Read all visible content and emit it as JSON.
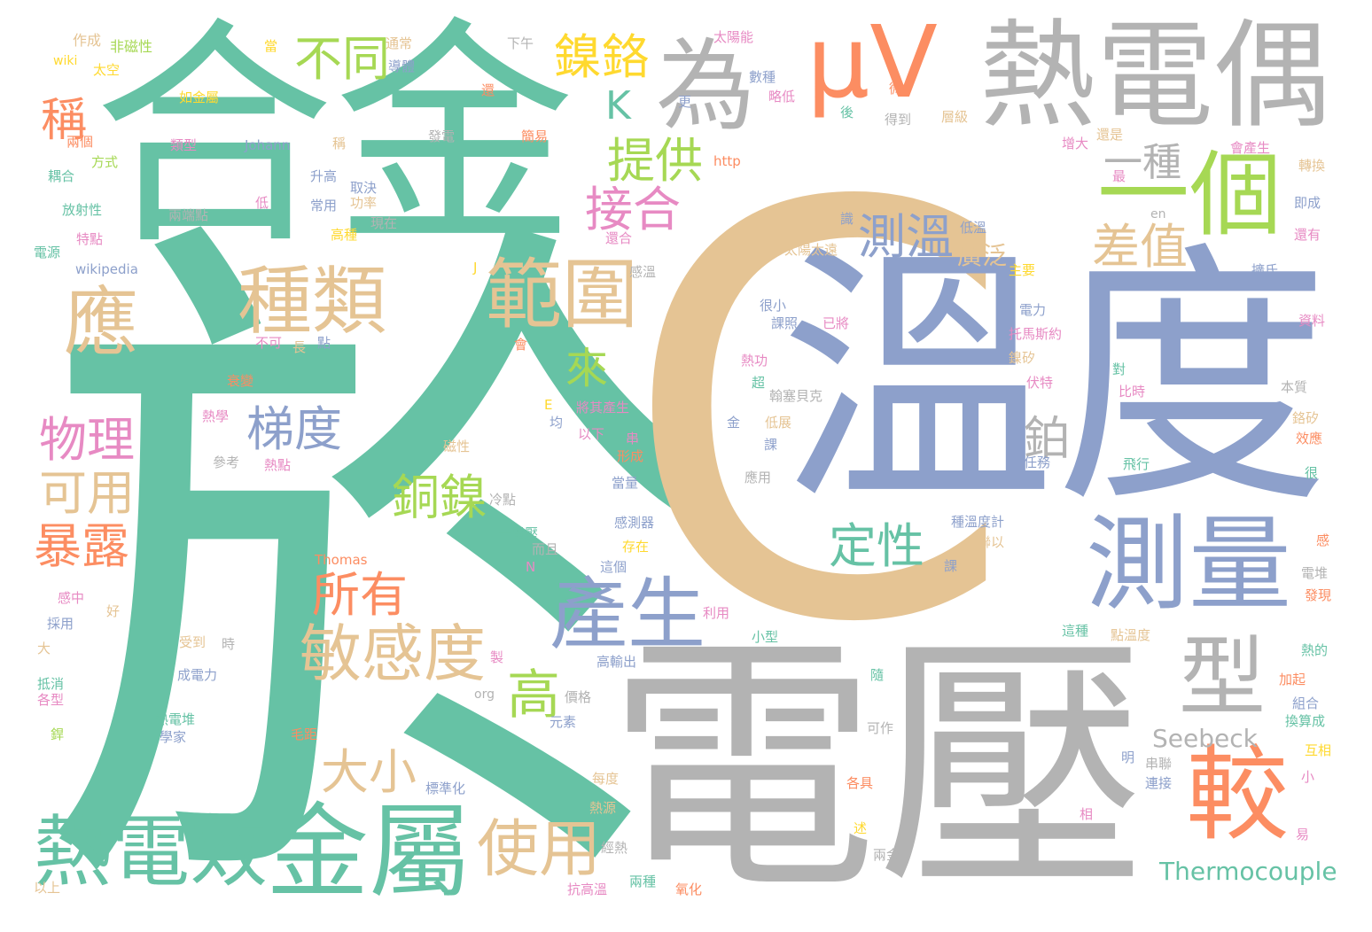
{
  "palette": {
    "green": "#66c2a5",
    "orange": "#fc8d62",
    "blue": "#8da0cb",
    "pink": "#e78ac3",
    "lime": "#a6d854",
    "yellow": "#ffd92f",
    "tan": "#e5c494",
    "gray": "#b3b3b3"
  },
  "words": [
    {
      "text": "於",
      "color": "#66c2a5"
    },
    {
      "text": "C",
      "color": "#e5c494"
    },
    {
      "text": "溫度",
      "color": "#8da0cb"
    },
    {
      "text": "電壓",
      "color": "#b3b3b3"
    },
    {
      "text": "合金",
      "color": "#66c2a5"
    },
    {
      "text": "熱電偶",
      "color": "#b3b3b3"
    },
    {
      "text": "μV",
      "color": "#fc8d62"
    },
    {
      "text": "為",
      "color": "#b3b3b3"
    },
    {
      "text": "一個",
      "color": "#a6d854"
    },
    {
      "text": "測量",
      "color": "#8da0cb"
    },
    {
      "text": "金屬",
      "color": "#66c2a5"
    },
    {
      "text": "熱電效",
      "color": "#66c2a5"
    },
    {
      "text": "較",
      "color": "#fc8d62"
    },
    {
      "text": "產生",
      "color": "#8da0cb"
    },
    {
      "text": "型",
      "color": "#b3b3b3"
    },
    {
      "text": "範圍",
      "color": "#e5c494"
    },
    {
      "text": "種類",
      "color": "#e5c494"
    },
    {
      "text": "應",
      "color": "#e5c494"
    },
    {
      "text": "敏感度",
      "color": "#e5c494"
    },
    {
      "text": "使用",
      "color": "#e5c494"
    },
    {
      "text": "測溫",
      "color": "#8da0cb"
    },
    {
      "text": "差值",
      "color": "#e5c494"
    },
    {
      "text": "鎳鉻",
      "color": "#ffd92f"
    },
    {
      "text": "提供",
      "color": "#a6d854"
    },
    {
      "text": "接合",
      "color": "#e78ac3"
    },
    {
      "text": "不同",
      "color": "#a6d854"
    },
    {
      "text": "梯度",
      "color": "#8da0cb"
    },
    {
      "text": "物理",
      "color": "#e78ac3"
    },
    {
      "text": "可用",
      "color": "#e5c494"
    },
    {
      "text": "暴露",
      "color": "#fc8d62"
    },
    {
      "text": "銅鎳",
      "color": "#a6d854"
    },
    {
      "text": "所有",
      "color": "#fc8d62"
    },
    {
      "text": "大小",
      "color": "#e5c494"
    },
    {
      "text": "定性",
      "color": "#66c2a5"
    },
    {
      "text": "一種",
      "color": "#b3b3b3"
    },
    {
      "text": "高",
      "color": "#a6d854"
    },
    {
      "text": "來",
      "color": "#a6d854"
    },
    {
      "text": "稱",
      "color": "#fc8d62"
    },
    {
      "text": "K",
      "color": "#66c2a5"
    },
    {
      "text": "鉑",
      "color": "#b3b3b3"
    },
    {
      "text": "Seebeck",
      "color": "#b3b3b3"
    },
    {
      "text": "Thermocouple",
      "color": "#66c2a5"
    },
    {
      "text": "廣泛",
      "color": "#e5c494"
    },
    {
      "text": "作成",
      "color": "#e5c494"
    },
    {
      "text": "非磁性",
      "color": "#a6d854"
    },
    {
      "text": "wiki",
      "color": "#ffd92f"
    },
    {
      "text": "太空",
      "color": "#ffd92f"
    },
    {
      "text": "當",
      "color": "#ffd92f"
    },
    {
      "text": "通常",
      "color": "#e5c494"
    },
    {
      "text": "導體",
      "color": "#8da0cb"
    },
    {
      "text": "下午",
      "color": "#b3b3b3"
    },
    {
      "text": "太陽能",
      "color": "#e78ac3"
    },
    {
      "text": "如金屬",
      "color": "#ffd92f"
    },
    {
      "text": "類型",
      "color": "#e78ac3"
    },
    {
      "text": "Johann",
      "color": "#8da0cb"
    },
    {
      "text": "稱",
      "color": "#e5c494"
    },
    {
      "text": "發電",
      "color": "#b3b3b3"
    },
    {
      "text": "簡易",
      "color": "#fc8d62"
    },
    {
      "text": "還",
      "color": "#fc8d62"
    },
    {
      "text": "兩個",
      "color": "#fc8d62"
    },
    {
      "text": "方式",
      "color": "#a6d854"
    },
    {
      "text": "耦合",
      "color": "#66c2a5"
    },
    {
      "text": "兩端點",
      "color": "#b3b3b3"
    },
    {
      "text": "低",
      "color": "#e78ac3"
    },
    {
      "text": "升高",
      "color": "#8da0cb"
    },
    {
      "text": "取決",
      "color": "#8da0cb"
    },
    {
      "text": "常用",
      "color": "#8da0cb"
    },
    {
      "text": "功率",
      "color": "#e5c494"
    },
    {
      "text": "放射性",
      "color": "#66c2a5"
    },
    {
      "text": "特點",
      "color": "#e78ac3"
    },
    {
      "text": "現在",
      "color": "#b3b3b3"
    },
    {
      "text": "高種",
      "color": "#ffd92f"
    },
    {
      "text": "電源",
      "color": "#66c2a5"
    },
    {
      "text": "wikipedia",
      "color": "#8da0cb"
    },
    {
      "text": "J",
      "color": "#ffd92f"
    },
    {
      "text": "http",
      "color": "#fc8d62"
    },
    {
      "text": "更",
      "color": "#8da0cb"
    },
    {
      "text": "數種",
      "color": "#8da0cb"
    },
    {
      "text": "略低",
      "color": "#e78ac3"
    },
    {
      "text": "微",
      "color": "#fc8d62"
    },
    {
      "text": "後",
      "color": "#66c2a5"
    },
    {
      "text": "得到",
      "color": "#b3b3b3"
    },
    {
      "text": "層級",
      "color": "#e5c494"
    },
    {
      "text": "增大",
      "color": "#e78ac3"
    },
    {
      "text": "還是",
      "color": "#e5c494"
    },
    {
      "text": "會產生",
      "color": "#e78ac3"
    },
    {
      "text": "轉換",
      "color": "#e5c494"
    },
    {
      "text": "最",
      "color": "#e78ac3"
    },
    {
      "text": "即成",
      "color": "#8da0cb"
    },
    {
      "text": "還有",
      "color": "#e78ac3"
    },
    {
      "text": "en",
      "color": "#b3b3b3"
    },
    {
      "text": "擴氏",
      "color": "#8da0cb"
    },
    {
      "text": "資料",
      "color": "#e78ac3"
    },
    {
      "text": "識",
      "color": "#8da0cb"
    },
    {
      "text": "低溫",
      "color": "#8da0cb"
    },
    {
      "text": "太陽太遠",
      "color": "#e5c494"
    },
    {
      "text": "主要",
      "color": "#ffd92f"
    },
    {
      "text": "還合",
      "color": "#e78ac3"
    },
    {
      "text": "感溫",
      "color": "#b3b3b3"
    },
    {
      "text": "很小",
      "color": "#8da0cb"
    },
    {
      "text": "課照",
      "color": "#8da0cb"
    },
    {
      "text": "已將",
      "color": "#e78ac3"
    },
    {
      "text": "電力",
      "color": "#8da0cb"
    },
    {
      "text": "托馬斯約",
      "color": "#e78ac3"
    },
    {
      "text": "鎳矽",
      "color": "#e5c494"
    },
    {
      "text": "伏特",
      "color": "#e78ac3"
    },
    {
      "text": "對",
      "color": "#66c2a5"
    },
    {
      "text": "本質",
      "color": "#b3b3b3"
    },
    {
      "text": "比時",
      "color": "#e78ac3"
    },
    {
      "text": "鉻矽",
      "color": "#e5c494"
    },
    {
      "text": "效應",
      "color": "#fc8d62"
    },
    {
      "text": "熱功",
      "color": "#e78ac3"
    },
    {
      "text": "超",
      "color": "#66c2a5"
    },
    {
      "text": "翰塞貝克",
      "color": "#b3b3b3"
    },
    {
      "text": "不可",
      "color": "#e78ac3"
    },
    {
      "text": "長",
      "color": "#e5c494"
    },
    {
      "text": "點",
      "color": "#8da0cb"
    },
    {
      "text": "會",
      "color": "#fc8d62"
    },
    {
      "text": "衰變",
      "color": "#fc8d62"
    },
    {
      "text": "熱學",
      "color": "#e78ac3"
    },
    {
      "text": "E",
      "color": "#ffd92f"
    },
    {
      "text": "均",
      "color": "#8da0cb"
    },
    {
      "text": "將其產生",
      "color": "#e78ac3"
    },
    {
      "text": "以下",
      "color": "#e78ac3"
    },
    {
      "text": "金",
      "color": "#8da0cb"
    },
    {
      "text": "低展",
      "color": "#e5c494"
    },
    {
      "text": "課",
      "color": "#8da0cb"
    },
    {
      "text": "串",
      "color": "#e78ac3"
    },
    {
      "text": "形成",
      "color": "#fc8d62"
    },
    {
      "text": "任務",
      "color": "#8da0cb"
    },
    {
      "text": "飛行",
      "color": "#66c2a5"
    },
    {
      "text": "很",
      "color": "#66c2a5"
    },
    {
      "text": "參考",
      "color": "#b3b3b3"
    },
    {
      "text": "熱點",
      "color": "#e78ac3"
    },
    {
      "text": "磁性",
      "color": "#e5c494"
    },
    {
      "text": "當量",
      "color": "#8da0cb"
    },
    {
      "text": "應用",
      "color": "#b3b3b3"
    },
    {
      "text": "冷點",
      "color": "#b3b3b3"
    },
    {
      "text": "一電壓",
      "color": "#66c2a5"
    },
    {
      "text": "感測器",
      "color": "#8da0cb"
    },
    {
      "text": "存在",
      "color": "#ffd92f"
    },
    {
      "text": "種溫度計",
      "color": "#8da0cb"
    },
    {
      "text": "聯以",
      "color": "#e5c494"
    },
    {
      "text": "而且",
      "color": "#b3b3b3"
    },
    {
      "text": "這個",
      "color": "#8da0cb"
    },
    {
      "text": "課",
      "color": "#8da0cb"
    },
    {
      "text": "Thomas",
      "color": "#fc8d62"
    },
    {
      "text": "N",
      "color": "#e78ac3"
    },
    {
      "text": "感中",
      "color": "#e78ac3"
    },
    {
      "text": "好",
      "color": "#e5c494"
    },
    {
      "text": "採用",
      "color": "#8da0cb"
    },
    {
      "text": "受到",
      "color": "#e5c494"
    },
    {
      "text": "時",
      "color": "#b3b3b3"
    },
    {
      "text": "利用",
      "color": "#e78ac3"
    },
    {
      "text": "小型",
      "color": "#66c2a5"
    },
    {
      "text": "這種",
      "color": "#66c2a5"
    },
    {
      "text": "點溫度",
      "color": "#e5c494"
    },
    {
      "text": "大",
      "color": "#e5c494"
    },
    {
      "text": "製",
      "color": "#e78ac3"
    },
    {
      "text": "高輸出",
      "color": "#8da0cb"
    },
    {
      "text": "隨",
      "color": "#66c2a5"
    },
    {
      "text": "成電力",
      "color": "#8da0cb"
    },
    {
      "text": "抵消",
      "color": "#66c2a5"
    },
    {
      "text": "各型",
      "color": "#e78ac3"
    },
    {
      "text": "org",
      "color": "#b3b3b3"
    },
    {
      "text": "價格",
      "color": "#b3b3b3"
    },
    {
      "text": "熱的",
      "color": "#66c2a5"
    },
    {
      "text": "加起",
      "color": "#fc8d62"
    },
    {
      "text": "組合",
      "color": "#8da0cb"
    },
    {
      "text": "換算成",
      "color": "#66c2a5"
    },
    {
      "text": "熱電堆",
      "color": "#66c2a5"
    },
    {
      "text": "學家",
      "color": "#8da0cb"
    },
    {
      "text": "元素",
      "color": "#8da0cb"
    },
    {
      "text": "毛距",
      "color": "#fc8d62"
    },
    {
      "text": "可作",
      "color": "#b3b3b3"
    },
    {
      "text": "銲",
      "color": "#a6d854"
    },
    {
      "text": "明",
      "color": "#8da0cb"
    },
    {
      "text": "串聯",
      "color": "#b3b3b3"
    },
    {
      "text": "互相",
      "color": "#ffd92f"
    },
    {
      "text": "每度",
      "color": "#e5c494"
    },
    {
      "text": "標準化",
      "color": "#8da0cb"
    },
    {
      "text": "各具",
      "color": "#fc8d62"
    },
    {
      "text": "連接",
      "color": "#8da0cb"
    },
    {
      "text": "小",
      "color": "#e78ac3"
    },
    {
      "text": "熱源",
      "color": "#e5c494"
    },
    {
      "text": "相",
      "color": "#e78ac3"
    },
    {
      "text": "易",
      "color": "#e78ac3"
    },
    {
      "text": "述",
      "color": "#ffd92f"
    },
    {
      "text": "經熱",
      "color": "#b3b3b3"
    },
    {
      "text": "兩金",
      "color": "#b3b3b3"
    },
    {
      "text": "以上",
      "color": "#e5c494"
    },
    {
      "text": "抗高溫",
      "color": "#e78ac3"
    },
    {
      "text": "兩種",
      "color": "#66c2a5"
    },
    {
      "text": "氧化",
      "color": "#fc8d62"
    },
    {
      "text": "電堆",
      "color": "#b3b3b3"
    },
    {
      "text": "發現",
      "color": "#fc8d62"
    },
    {
      "text": "感",
      "color": "#fc8d62"
    }
  ]
}
